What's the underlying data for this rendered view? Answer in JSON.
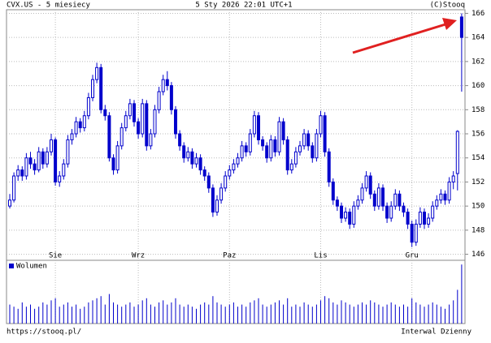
{
  "chart_data": {
    "type": "candlestick",
    "title": "CVX.US - 5 miesiecy",
    "subtitle": "5 Sty 2026 22:01 UTC+1",
    "source": "(C)Stooq",
    "footer_left": "https://stooq.pl/",
    "footer_right": "Interwal Dzienny",
    "volume_name": "Wolumen",
    "color": "#0000cc",
    "ylim": [
      145.5,
      166.3
    ],
    "yticks": [
      146,
      148,
      150,
      152,
      154,
      156,
      158,
      160,
      162,
      164,
      166
    ],
    "xticks": [
      {
        "value": 11,
        "label": "Sie"
      },
      {
        "value": 31,
        "label": "Wrz"
      },
      {
        "value": 53,
        "label": "Paz"
      },
      {
        "value": 75,
        "label": "Lis"
      },
      {
        "value": 97,
        "label": "Gru"
      }
    ],
    "volume_lim": [
      0,
      30
    ],
    "ohlc": [
      [
        150.0,
        151.0,
        149.8,
        150.5
      ],
      [
        150.5,
        152.8,
        150.3,
        152.5
      ],
      [
        152.5,
        153.4,
        152.1,
        153
      ],
      [
        153,
        153.3,
        152.1,
        152.5
      ],
      [
        152.5,
        154.4,
        152.2,
        154
      ],
      [
        154,
        154.5,
        153.1,
        153.5
      ],
      [
        153.5,
        153.9,
        152.6,
        153
      ],
      [
        153,
        154.9,
        152.8,
        154.5
      ],
      [
        154.5,
        154.8,
        153.1,
        153.5
      ],
      [
        153.5,
        154.9,
        153.2,
        154.5
      ],
      [
        154.5,
        156,
        154.2,
        155.5
      ],
      [
        155.5,
        155.7,
        151.7,
        152
      ],
      [
        152,
        152.9,
        151.6,
        152.5
      ],
      [
        152.5,
        153.9,
        152.2,
        153.5
      ],
      [
        153.5,
        155.9,
        153.2,
        155.5
      ],
      [
        155.5,
        156.4,
        155.1,
        156
      ],
      [
        156,
        157.4,
        155.7,
        157
      ],
      [
        157,
        157.3,
        156.1,
        156.5
      ],
      [
        156.5,
        157.9,
        156.2,
        157.5
      ],
      [
        157.5,
        159.4,
        157.2,
        159
      ],
      [
        159,
        160.9,
        158.7,
        160.5
      ],
      [
        160.5,
        161.9,
        160.2,
        161.5
      ],
      [
        161.5,
        161.8,
        157.7,
        158
      ],
      [
        158,
        158.4,
        157.1,
        157.5
      ],
      [
        157.5,
        157.8,
        153.7,
        154
      ],
      [
        154,
        154.3,
        152.6,
        153
      ],
      [
        153,
        155.4,
        152.7,
        155
      ],
      [
        155,
        156.9,
        154.7,
        156.5
      ],
      [
        156.5,
        157.9,
        156.2,
        157.5
      ],
      [
        157.5,
        158.9,
        157.2,
        158.5
      ],
      [
        158.5,
        158.8,
        156.6,
        157
      ],
      [
        157,
        157.3,
        155.6,
        156
      ],
      [
        156,
        158.9,
        155.7,
        158.5
      ],
      [
        158.5,
        158.8,
        154.6,
        155
      ],
      [
        155,
        156.4,
        154.7,
        156
      ],
      [
        156,
        158.4,
        155.7,
        158
      ],
      [
        158,
        159.9,
        157.7,
        159.5
      ],
      [
        159.5,
        160.9,
        159.2,
        160.5
      ],
      [
        160.5,
        161.2,
        159.6,
        160
      ],
      [
        160,
        160.3,
        157.6,
        158
      ],
      [
        158,
        158.3,
        155.6,
        156
      ],
      [
        156,
        156.3,
        154.6,
        155
      ],
      [
        155,
        155.3,
        153.6,
        154
      ],
      [
        154,
        154.9,
        153.7,
        154.5
      ],
      [
        154.5,
        154.8,
        153.1,
        153.5
      ],
      [
        153.5,
        154.4,
        153.2,
        154
      ],
      [
        154,
        154.3,
        152.6,
        153
      ],
      [
        153,
        153.3,
        152.1,
        152.5
      ],
      [
        152.5,
        152.8,
        151.1,
        151.5
      ],
      [
        151.5,
        151.8,
        149.1,
        149.5
      ],
      [
        149.5,
        150.9,
        149.2,
        150.5
      ],
      [
        150.5,
        151.9,
        150.2,
        151.5
      ],
      [
        151.5,
        152.9,
        151.2,
        152.5
      ],
      [
        152.5,
        153.4,
        152.2,
        153
      ],
      [
        153,
        153.9,
        152.7,
        153.5
      ],
      [
        153.5,
        154.4,
        153.2,
        154
      ],
      [
        154,
        155.4,
        153.7,
        155
      ],
      [
        155,
        155.3,
        154.1,
        154.5
      ],
      [
        154.5,
        156.4,
        154.2,
        156
      ],
      [
        156,
        157.9,
        155.7,
        157.5
      ],
      [
        157.5,
        157.8,
        155.1,
        155.5
      ],
      [
        155.5,
        155.8,
        154.6,
        155
      ],
      [
        155,
        155.3,
        153.6,
        154
      ],
      [
        154,
        155.9,
        153.7,
        155.5
      ],
      [
        155.5,
        155.8,
        154.1,
        154.5
      ],
      [
        154.5,
        157.4,
        154.2,
        157
      ],
      [
        157,
        157.3,
        155.1,
        155.5
      ],
      [
        155.5,
        155.8,
        152.6,
        153
      ],
      [
        153,
        153.9,
        152.7,
        153.5
      ],
      [
        153.5,
        154.9,
        153.2,
        154.5
      ],
      [
        154.5,
        155.4,
        154.2,
        155
      ],
      [
        155,
        156.4,
        154.7,
        156
      ],
      [
        156,
        156.3,
        154.6,
        155
      ],
      [
        155,
        155.3,
        153.6,
        154
      ],
      [
        154,
        156.4,
        153.7,
        156
      ],
      [
        156,
        157.9,
        155.7,
        157.5
      ],
      [
        157.5,
        157.8,
        154.1,
        154.5
      ],
      [
        154.5,
        154.8,
        151.6,
        152
      ],
      [
        152,
        152.3,
        150.1,
        150.5
      ],
      [
        150.5,
        150.8,
        149.6,
        150
      ],
      [
        150,
        150.3,
        148.6,
        149
      ],
      [
        149,
        149.9,
        148.7,
        149.5
      ],
      [
        149.5,
        149.8,
        148.1,
        148.5
      ],
      [
        148.5,
        150.4,
        148.2,
        150
      ],
      [
        150,
        150.9,
        149.7,
        150.5
      ],
      [
        150.5,
        151.9,
        150.2,
        151.5
      ],
      [
        151.5,
        152.9,
        151.2,
        152.5
      ],
      [
        152.5,
        152.8,
        150.6,
        151
      ],
      [
        151,
        151.3,
        149.6,
        150
      ],
      [
        150,
        151.9,
        149.7,
        151.5
      ],
      [
        151.5,
        151.8,
        149.6,
        150
      ],
      [
        150,
        150.3,
        148.6,
        149
      ],
      [
        149,
        150.4,
        148.7,
        150
      ],
      [
        150,
        151.4,
        149.7,
        151
      ],
      [
        151,
        151.3,
        149.6,
        150
      ],
      [
        150,
        150.3,
        149.1,
        149.5
      ],
      [
        149.5,
        149.8,
        148.1,
        148.5
      ],
      [
        148.5,
        148.8,
        146.6,
        147
      ],
      [
        147,
        148.9,
        146.7,
        148.5
      ],
      [
        148.5,
        149.9,
        148.2,
        149.5
      ],
      [
        149.5,
        149.8,
        148.1,
        148.5
      ],
      [
        148.5,
        149.4,
        148.2,
        149
      ],
      [
        149,
        150.4,
        148.7,
        150
      ],
      [
        150,
        150.9,
        149.7,
        150.5
      ],
      [
        150.5,
        151.4,
        150.2,
        151
      ],
      [
        151,
        151.3,
        150.1,
        150.5
      ],
      [
        150.5,
        152.4,
        150.2,
        152
      ],
      [
        152,
        152.9,
        151.4,
        152.5
      ],
      [
        152.7,
        156.3,
        151.3,
        156.2
      ],
      [
        165.7,
        166,
        159.5,
        164
      ]
    ],
    "volume": [
      9,
      8,
      7,
      10,
      8,
      9,
      7,
      8,
      10,
      9,
      11,
      12,
      8,
      9,
      10,
      8,
      9,
      7,
      8,
      10,
      11,
      12,
      13,
      9,
      14,
      10,
      9,
      8,
      9,
      10,
      8,
      9,
      11,
      12,
      9,
      8,
      10,
      11,
      9,
      10,
      12,
      9,
      8,
      9,
      8,
      7,
      9,
      10,
      9,
      13,
      10,
      9,
      8,
      9,
      10,
      8,
      9,
      8,
      10,
      11,
      12,
      9,
      8,
      9,
      10,
      11,
      9,
      12,
      8,
      9,
      8,
      10,
      9,
      8,
      9,
      11,
      13,
      12,
      10,
      9,
      11,
      10,
      9,
      8,
      9,
      10,
      9,
      11,
      10,
      9,
      8,
      9,
      10,
      9,
      8,
      9,
      8,
      12,
      10,
      9,
      8,
      9,
      10,
      9,
      8,
      7,
      9,
      11,
      16,
      28
    ]
  }
}
